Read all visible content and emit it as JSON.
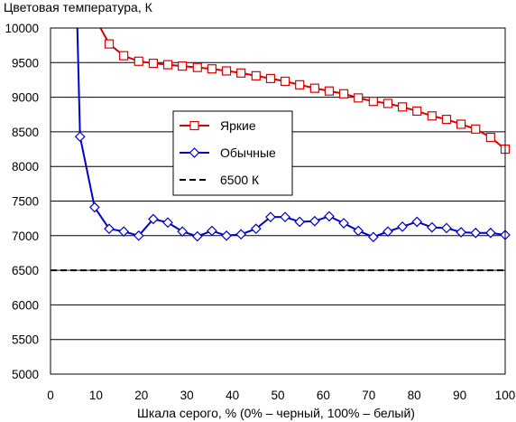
{
  "chart_data": {
    "type": "line",
    "title": "",
    "ylabel": "Цветовая температура, К",
    "xlabel": "Шкала серого, % (0% – черный, 100% – белый)",
    "xlim": [
      0,
      100
    ],
    "ylim": [
      5000,
      10000
    ],
    "x_ticks": [
      0,
      10,
      20,
      30,
      40,
      50,
      60,
      70,
      80,
      90,
      100
    ],
    "y_ticks": [
      5000,
      5500,
      6000,
      6500,
      7000,
      7500,
      8000,
      8500,
      9000,
      9500,
      10000
    ],
    "grid": "horizontal",
    "legend_position": "center",
    "series": [
      {
        "name": "Яркие",
        "color": "#dd0000",
        "marker": "square",
        "x": [
          12.9,
          16.1,
          19.4,
          22.6,
          25.8,
          29.0,
          32.3,
          35.5,
          38.7,
          41.9,
          45.2,
          48.4,
          51.6,
          54.8,
          58.1,
          61.3,
          64.5,
          67.7,
          71.0,
          74.2,
          77.4,
          80.6,
          83.9,
          87.1,
          90.3,
          93.5,
          96.8,
          100
        ],
        "y": [
          9770,
          9600,
          9520,
          9490,
          9470,
          9450,
          9430,
          9410,
          9380,
          9350,
          9310,
          9270,
          9230,
          9180,
          9130,
          9090,
          9050,
          8990,
          8940,
          8910,
          8860,
          8800,
          8730,
          8680,
          8610,
          8540,
          8420,
          8250
        ],
        "line_only_x": [
          11.0
        ],
        "line_only_y": [
          10020
        ]
      },
      {
        "name": "Обычные",
        "color": "#0000cc",
        "marker": "diamond",
        "x": [
          6.5,
          9.7,
          12.9,
          16.1,
          19.4,
          22.6,
          25.8,
          29.0,
          32.3,
          35.5,
          38.7,
          41.9,
          45.2,
          48.4,
          51.6,
          54.8,
          58.1,
          61.3,
          64.5,
          67.7,
          71.0,
          74.2,
          77.4,
          80.6,
          83.9,
          87.1,
          90.3,
          93.5,
          96.8,
          100
        ],
        "y": [
          8430,
          7410,
          7100,
          7060,
          7000,
          7240,
          7190,
          7060,
          6990,
          7070,
          7000,
          7020,
          7100,
          7270,
          7270,
          7200,
          7210,
          7280,
          7180,
          7070,
          6980,
          7060,
          7130,
          7200,
          7120,
          7110,
          7050,
          7040,
          7040,
          7010
        ],
        "line_only_x": [
          5.9
        ],
        "line_only_y": [
          10020
        ]
      },
      {
        "name": "6500 К",
        "color": "#000000",
        "style": "dashed",
        "x": [
          0,
          100
        ],
        "y": [
          6500,
          6500
        ]
      }
    ]
  }
}
